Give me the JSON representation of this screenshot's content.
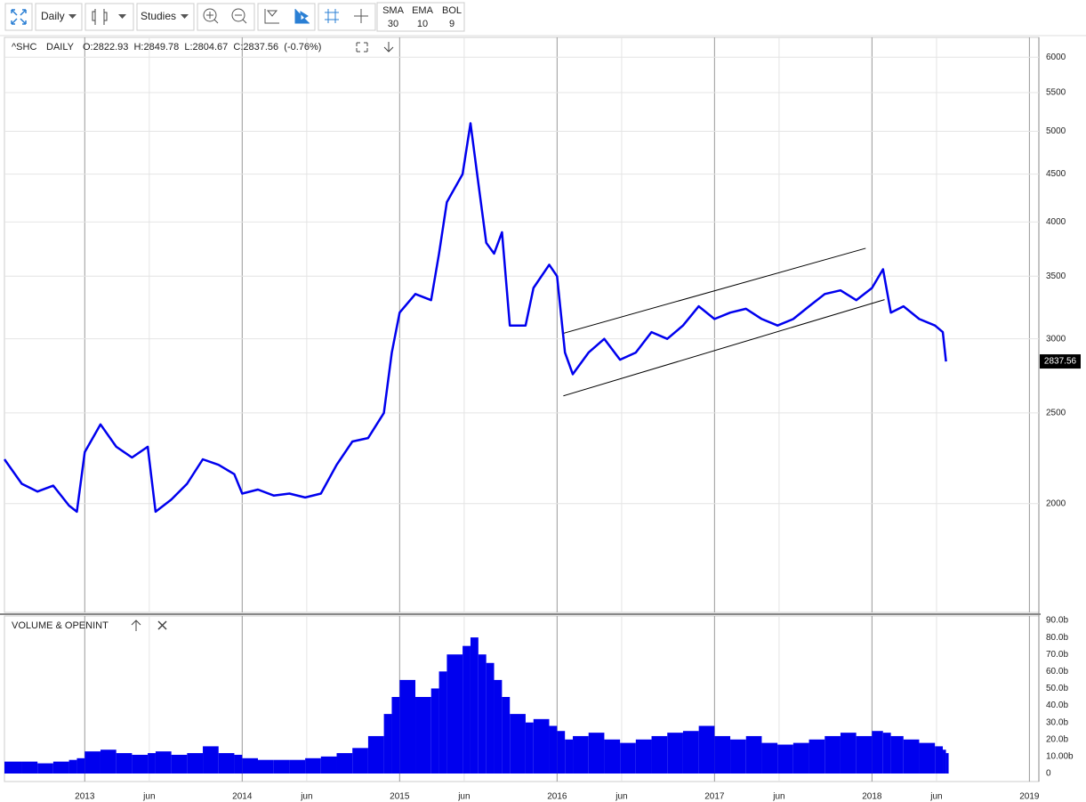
{
  "toolbar": {
    "interval": "Daily",
    "studies": "Studies",
    "indicators": [
      {
        "name": "SMA",
        "value": 30
      },
      {
        "name": "EMA",
        "value": 10
      },
      {
        "name": "BOL",
        "value": 9
      }
    ]
  },
  "chart_data": [
    {
      "type": "line",
      "symbol": "^SHC",
      "interval": "DAILY",
      "ohlc": "O:2822.93  H:2849.78  L:2804.67  C:2837.56  (-0.76%)",
      "x": [
        2012.49,
        2012.6,
        2012.7,
        2012.8,
        2012.9,
        2012.95,
        2013.0,
        2013.1,
        2013.2,
        2013.3,
        2013.4,
        2013.45,
        2013.55,
        2013.65,
        2013.75,
        2013.85,
        2013.95,
        2014.0,
        2014.1,
        2014.2,
        2014.3,
        2014.4,
        2014.5,
        2014.6,
        2014.7,
        2014.8,
        2014.9,
        2014.95,
        2015.0,
        2015.1,
        2015.2,
        2015.25,
        2015.3,
        2015.4,
        2015.45,
        2015.5,
        2015.55,
        2015.6,
        2015.65,
        2015.7,
        2015.8,
        2015.85,
        2015.95,
        2016.0,
        2016.05,
        2016.1,
        2016.2,
        2016.3,
        2016.4,
        2016.5,
        2016.6,
        2016.7,
        2016.8,
        2016.9,
        2017.0,
        2017.1,
        2017.2,
        2017.3,
        2017.4,
        2017.5,
        2017.6,
        2017.7,
        2017.8,
        2017.9,
        2018.0,
        2018.07,
        2018.12,
        2018.2,
        2018.3,
        2018.4,
        2018.45,
        2018.47
      ],
      "series": [
        {
          "color": "#0000ee",
          "values": [
            2230,
            2100,
            2060,
            2090,
            1990,
            1960,
            2270,
            2430,
            2300,
            2240,
            2300,
            1960,
            2020,
            2100,
            2230,
            2200,
            2150,
            2050,
            2070,
            2040,
            2050,
            2030,
            2050,
            2200,
            2330,
            2350,
            2500,
            2900,
            3200,
            3350,
            3300,
            3700,
            4200,
            4500,
            5100,
            4400,
            3800,
            3700,
            3900,
            3100,
            3100,
            3400,
            3600,
            3500,
            2900,
            2750,
            2900,
            3000,
            2850,
            2900,
            3050,
            3000,
            3100,
            3250,
            3150,
            3200,
            3230,
            3150,
            3100,
            3150,
            3250,
            3350,
            3380,
            3300,
            3400,
            3560,
            3200,
            3250,
            3150,
            3100,
            3050,
            2837.56
          ]
        }
      ],
      "trend_lines": [
        {
          "x": [
            2016.04,
            2017.96
          ],
          "y": [
            3041,
            3749
          ]
        },
        {
          "x": [
            2016.04,
            2018.08
          ],
          "y": [
            2607,
            3304
          ]
        }
      ],
      "xlim": [
        2012.49,
        2019.06
      ],
      "xticks": [
        2013,
        {
          "value": 2013.41,
          "label": "jun"
        },
        2014,
        {
          "value": 2014.41,
          "label": "jun"
        },
        2015,
        {
          "value": 2015.41,
          "label": "jun"
        },
        2016,
        {
          "value": 2016.41,
          "label": "jun"
        },
        2017,
        {
          "value": 2017.41,
          "label": "jun"
        },
        2018,
        {
          "value": 2018.41,
          "label": "jun"
        },
        2019
      ],
      "ylim": [
        1530,
        6300
      ],
      "yticks": [
        2000,
        2500,
        3000,
        3500,
        4000,
        4500,
        5000,
        5500,
        6000
      ],
      "log_scale": true,
      "grid": true
    },
    {
      "type": "bar",
      "title": "VOLUME & OPENINT",
      "color": "#0000ee",
      "x": [
        2012.49,
        2012.6,
        2012.7,
        2012.8,
        2012.9,
        2012.95,
        2013.0,
        2013.1,
        2013.2,
        2013.3,
        2013.4,
        2013.45,
        2013.55,
        2013.65,
        2013.75,
        2013.85,
        2013.95,
        2014.0,
        2014.1,
        2014.2,
        2014.3,
        2014.4,
        2014.5,
        2014.6,
        2014.7,
        2014.8,
        2014.9,
        2014.95,
        2015.0,
        2015.1,
        2015.2,
        2015.25,
        2015.3,
        2015.4,
        2015.45,
        2015.5,
        2015.55,
        2015.6,
        2015.65,
        2015.7,
        2015.8,
        2015.85,
        2015.95,
        2016.0,
        2016.05,
        2016.1,
        2016.2,
        2016.3,
        2016.4,
        2016.5,
        2016.6,
        2016.7,
        2016.8,
        2016.9,
        2017.0,
        2017.1,
        2017.2,
        2017.3,
        2017.4,
        2017.5,
        2017.6,
        2017.7,
        2017.8,
        2017.9,
        2018.0,
        2018.07,
        2018.12,
        2018.2,
        2018.3,
        2018.4,
        2018.45,
        2018.47
      ],
      "values": [
        7,
        7,
        6,
        7,
        8,
        9,
        13,
        14,
        12,
        11,
        12,
        13,
        11,
        12,
        16,
        12,
        11,
        9,
        8,
        8,
        8,
        9,
        10,
        12,
        15,
        22,
        35,
        45,
        55,
        45,
        50,
        60,
        70,
        75,
        80,
        70,
        65,
        55,
        45,
        35,
        30,
        32,
        28,
        25,
        20,
        22,
        24,
        20,
        18,
        20,
        22,
        24,
        25,
        28,
        22,
        20,
        22,
        18,
        17,
        18,
        20,
        22,
        24,
        22,
        25,
        24,
        22,
        20,
        18,
        16,
        14,
        12
      ],
      "ylim": [
        0,
        90
      ],
      "yticks": [
        0,
        {
          "value": 10,
          "label": "10.00b"
        },
        {
          "value": 20,
          "label": "20.0b"
        },
        {
          "value": 30,
          "label": "30.0b"
        },
        {
          "value": 40,
          "label": "40.0b"
        },
        {
          "value": 50,
          "label": "50.0b"
        },
        {
          "value": 60,
          "label": "60.0b"
        },
        {
          "value": 70,
          "label": "70.0b"
        },
        {
          "value": 80,
          "label": "80.0b"
        },
        {
          "value": 90,
          "label": "90.0b"
        }
      ]
    }
  ]
}
